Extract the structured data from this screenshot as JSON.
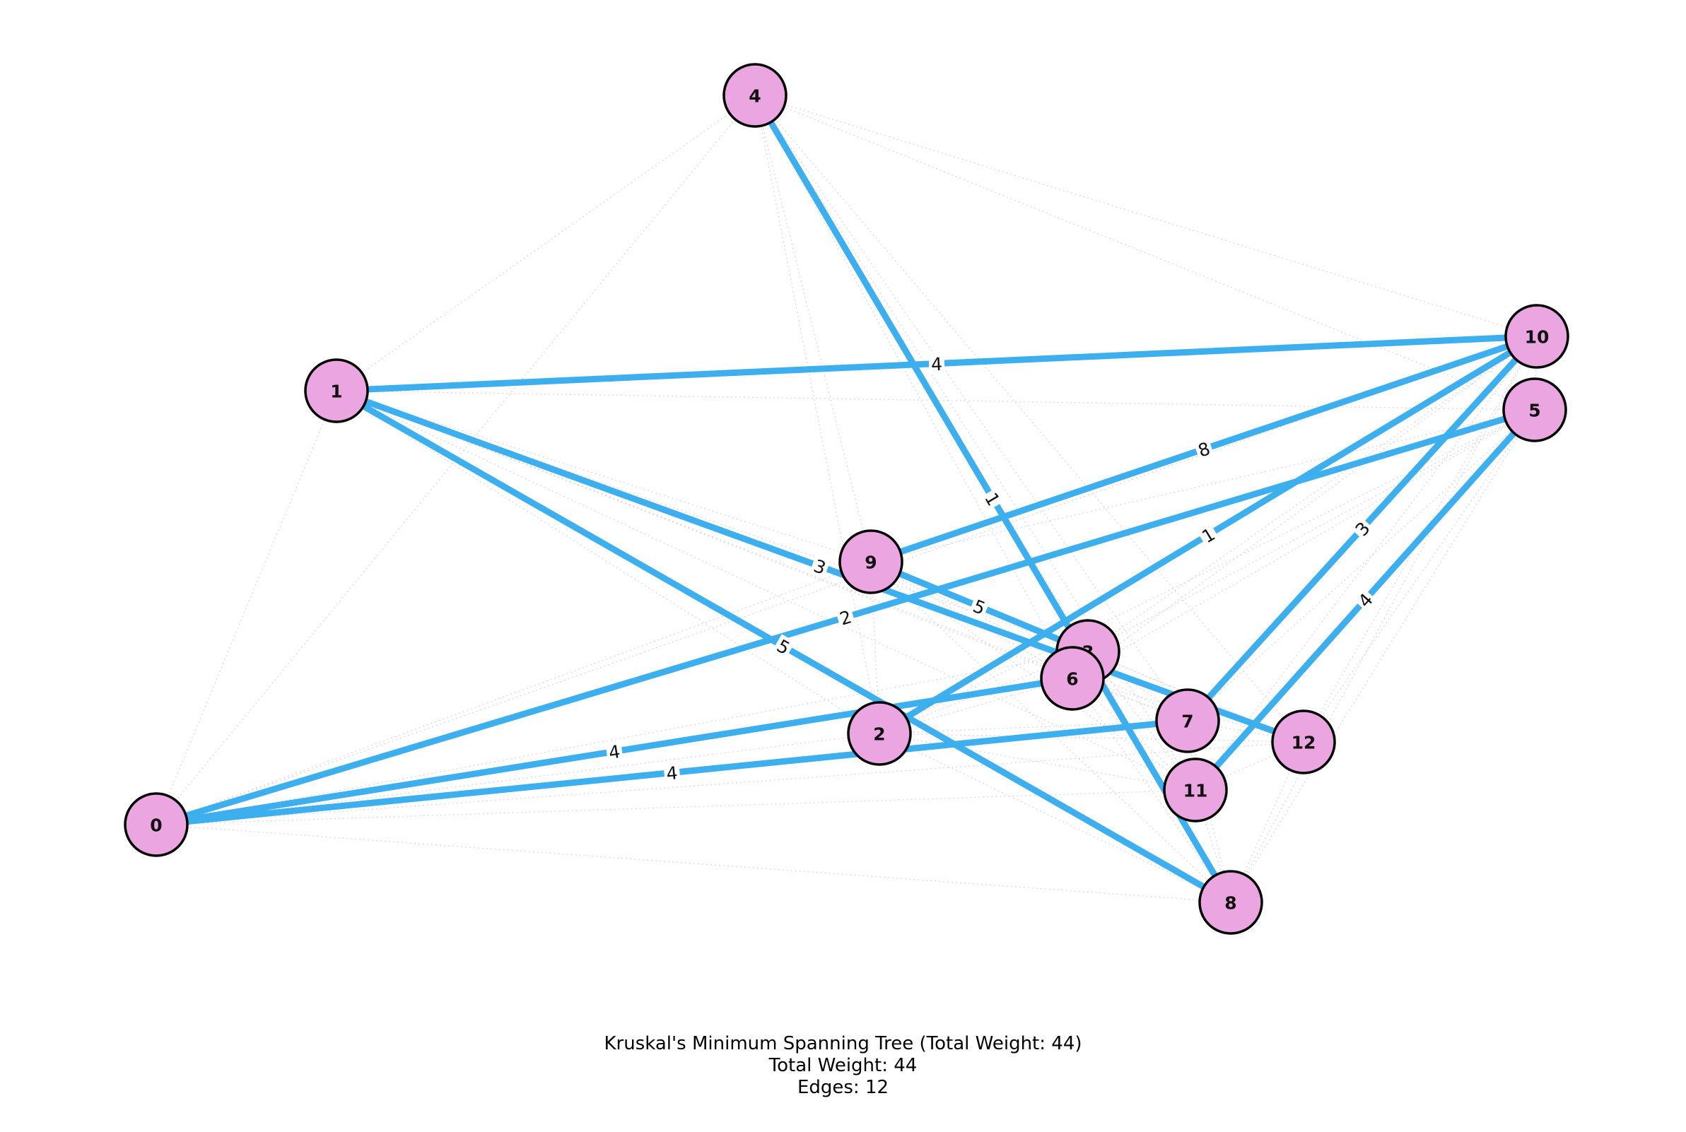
{
  "caption": {
    "title": "Kruskal's Minimum Spanning Tree (Total Weight: 44)",
    "total_weight": "Total Weight: 44",
    "edges": "Edges: 12"
  },
  "colors": {
    "node_fill": "#eba6e2",
    "node_stroke": "#000000",
    "mst_edge": "#3daeee",
    "background_edge": "#cfcfcf"
  },
  "nodes": [
    "0",
    "1",
    "2",
    "3",
    "4",
    "5",
    "6",
    "7",
    "8",
    "9",
    "10",
    "11",
    "12"
  ],
  "mst_edges": [
    {
      "u": "4",
      "v": "8",
      "weight": "1"
    },
    {
      "u": "10",
      "v": "2",
      "weight": "1"
    },
    {
      "u": "5",
      "v": "0",
      "weight": "2"
    },
    {
      "u": "1",
      "v": "12",
      "weight": "3"
    },
    {
      "u": "10",
      "v": "7",
      "weight": "3"
    },
    {
      "u": "1",
      "v": "10",
      "weight": "4"
    },
    {
      "u": "5",
      "v": "11",
      "weight": "4"
    },
    {
      "u": "0",
      "v": "6",
      "weight": "4"
    },
    {
      "u": "0",
      "v": "7",
      "weight": "4"
    },
    {
      "u": "1",
      "v": "8",
      "weight": "5"
    },
    {
      "u": "9",
      "v": "3",
      "weight": "5"
    },
    {
      "u": "10",
      "v": "9",
      "weight": "8"
    }
  ]
}
